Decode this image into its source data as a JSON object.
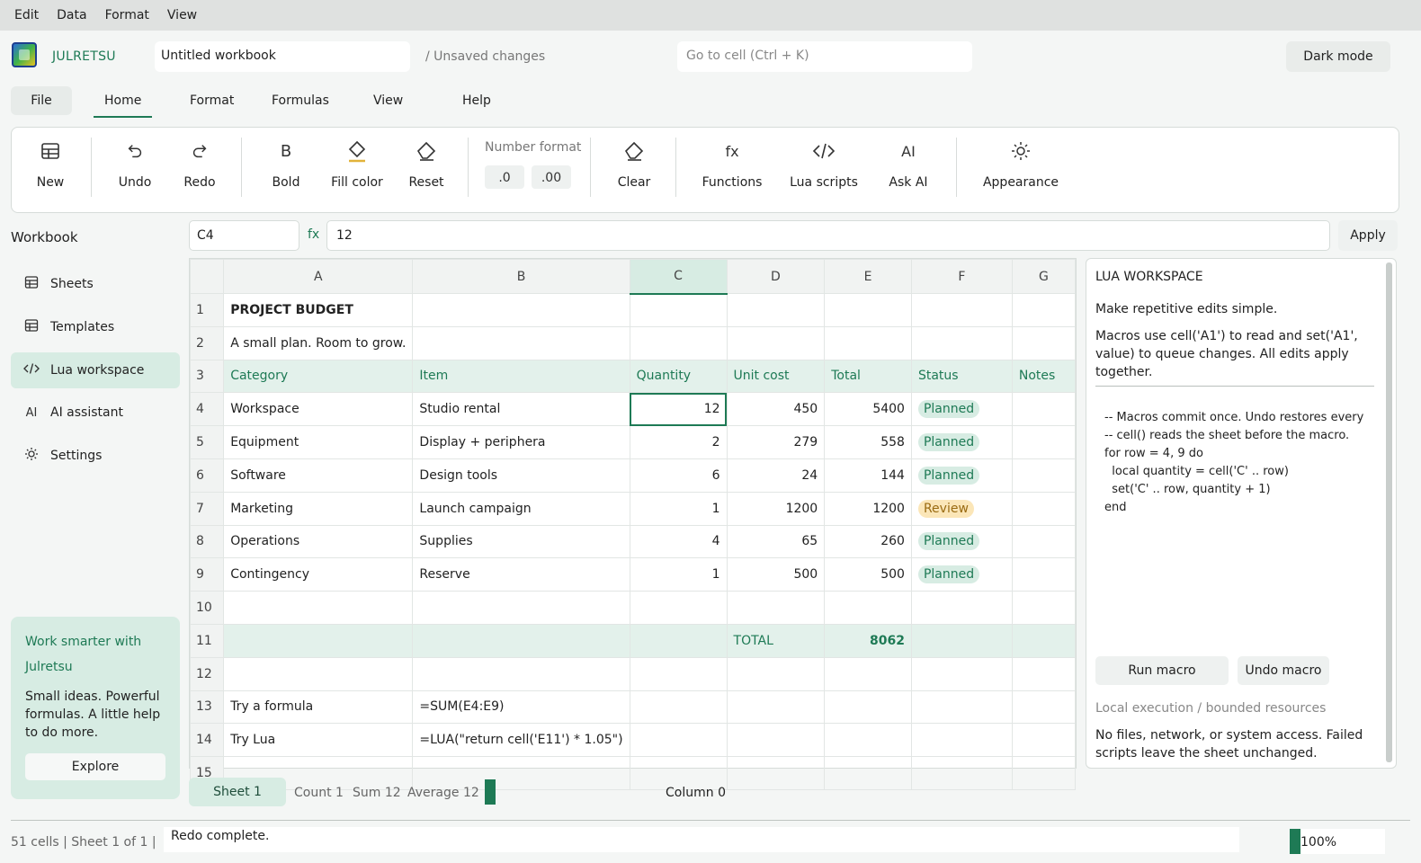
{
  "menubar": [
    "Edit",
    "Data",
    "Format",
    "View"
  ],
  "header": {
    "brand": "JULRETSU",
    "workbook_name": "Untitled workbook",
    "unsaved": "/  Unsaved changes",
    "goto_placeholder": "Go to cell  (Ctrl + K)",
    "dark_mode": "Dark mode"
  },
  "tabs": [
    "File",
    "Home",
    "Format",
    "Formulas",
    "View",
    "Help"
  ],
  "active_tab": "Home",
  "ribbon": {
    "new": "New",
    "undo": "Undo",
    "redo": "Redo",
    "bold": "Bold",
    "bold_icon": "B",
    "fill": "Fill color",
    "reset": "Reset",
    "number_format": "Number format",
    "nf1": ".0",
    "nf2": ".00",
    "clear": "Clear",
    "functions": "Functions",
    "fx_icon": "fx",
    "lua": "Lua scripts",
    "ai": "Ask AI",
    "ai_icon": "AI",
    "appearance": "Appearance"
  },
  "sidebar": {
    "title": "Workbook",
    "items": [
      {
        "label": "Sheets",
        "icon": "table-icon"
      },
      {
        "label": "Templates",
        "icon": "table-icon"
      },
      {
        "label": "Lua workspace",
        "icon": "code-icon"
      },
      {
        "label": "AI assistant",
        "icon": "ai-icon"
      },
      {
        "label": "Settings",
        "icon": "gear-icon"
      }
    ],
    "ai_label": "AI",
    "promo_title": "Work smarter with Julretsu",
    "promo_text": "Small ideas. Powerful formulas. A little help to do more.",
    "explore": "Explore"
  },
  "formula_bar": {
    "cell_ref": "C4",
    "fx": "fx",
    "formula": "12",
    "apply": "Apply"
  },
  "grid": {
    "columns": [
      "A",
      "B",
      "C",
      "D",
      "E",
      "F",
      "G"
    ],
    "selected_column": "C",
    "rows": [
      {
        "n": "1",
        "cells": [
          "PROJECT BUDGET",
          "",
          "",
          "",
          "",
          "",
          ""
        ]
      },
      {
        "n": "2",
        "cells": [
          "A small plan. Room to grow.",
          "",
          "",
          "",
          "",
          "",
          ""
        ]
      },
      {
        "n": "3",
        "cells": [
          "Category",
          "Item",
          "Quantity",
          "Unit cost",
          "Total",
          "Status",
          "Notes"
        ]
      },
      {
        "n": "4",
        "cells": [
          "Workspace",
          "Studio rental",
          "12",
          "450",
          "5400",
          "Planned",
          ""
        ]
      },
      {
        "n": "5",
        "cells": [
          "Equipment",
          "Display + periphera",
          "2",
          "279",
          "558",
          "Planned",
          ""
        ]
      },
      {
        "n": "6",
        "cells": [
          "Software",
          "Design tools",
          "6",
          "24",
          "144",
          "Planned",
          ""
        ]
      },
      {
        "n": "7",
        "cells": [
          "Marketing",
          "Launch campaign",
          "1",
          "1200",
          "1200",
          "Review",
          ""
        ]
      },
      {
        "n": "8",
        "cells": [
          "Operations",
          "Supplies",
          "4",
          "65",
          "260",
          "Planned",
          ""
        ]
      },
      {
        "n": "9",
        "cells": [
          "Contingency",
          "Reserve",
          "1",
          "500",
          "500",
          "Planned",
          ""
        ]
      },
      {
        "n": "10",
        "cells": [
          "",
          "",
          "",
          "",
          "",
          "",
          ""
        ]
      },
      {
        "n": "11",
        "cells": [
          "",
          "",
          "",
          "TOTAL",
          "8062",
          "",
          ""
        ]
      },
      {
        "n": "12",
        "cells": [
          "",
          "",
          "",
          "",
          "",
          "",
          ""
        ]
      },
      {
        "n": "13",
        "cells": [
          "Try a formula",
          "=SUM(E4:E9)",
          "",
          "",
          "",
          "",
          ""
        ]
      },
      {
        "n": "14",
        "cells": [
          "Try Lua",
          "=LUA(\"return cell('E11') * 1.05\")",
          "",
          "",
          "",
          "",
          ""
        ]
      },
      {
        "n": "15",
        "cells": [
          "",
          "",
          "",
          "",
          "",
          "",
          ""
        ]
      }
    ]
  },
  "sheet_tabs": {
    "sheet": "Sheet 1",
    "count": "Count 1",
    "sum": "Sum 12",
    "average": "Average 12",
    "column": "Column 0"
  },
  "lua": {
    "title": "LUA WORKSPACE",
    "p1": "Make repetitive edits simple.",
    "p2": "Macros use cell('A1') to read and set('A1', value) to queue changes. All edits apply together.",
    "code": "-- Macros commit once. Undo restores every\n-- cell() reads the sheet before the macro.\nfor row = 4, 9 do\n  local quantity = cell('C' .. row)\n  set('C' .. row, quantity + 1)\nend",
    "run": "Run macro",
    "undo": "Undo macro",
    "note1": "Local execution / bounded resources",
    "note2": "No files, network, or system access. Failed scripts leave the sheet unchanged."
  },
  "statusbar": {
    "left": "51 cells   |   Sheet 1 of 1   |",
    "message": "Redo complete.",
    "zoom": "100%"
  },
  "colors": {
    "accent": "#1e7a55",
    "accent_light": "#d7ece3",
    "review": "#fbe6b8"
  }
}
